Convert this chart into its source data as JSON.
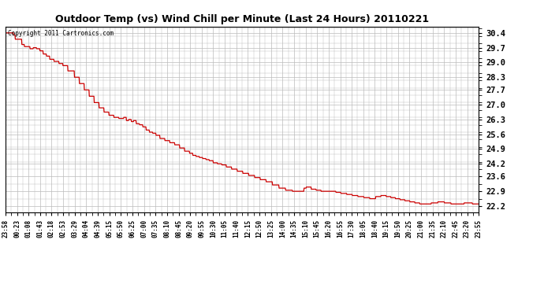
{
  "title": "Outdoor Temp (vs) Wind Chill per Minute (Last 24 Hours) 20110221",
  "copyright_text": "Copyright 2011 Cartronics.com",
  "line_color": "#cc0000",
  "background_color": "#ffffff",
  "plot_bg_color": "#ffffff",
  "grid_color": "#bbbbbb",
  "yticks": [
    22.2,
    22.9,
    23.6,
    24.2,
    24.9,
    25.6,
    26.3,
    27.0,
    27.7,
    28.3,
    29.0,
    29.7,
    30.4
  ],
  "ylim": [
    21.9,
    30.7
  ],
  "xtick_labels": [
    "23:58",
    "00:23",
    "01:08",
    "01:43",
    "02:18",
    "02:53",
    "03:29",
    "04:04",
    "04:39",
    "05:15",
    "05:50",
    "06:25",
    "07:00",
    "07:35",
    "08:10",
    "08:45",
    "09:20",
    "09:55",
    "10:30",
    "11:05",
    "11:40",
    "12:15",
    "12:50",
    "13:25",
    "14:00",
    "14:35",
    "15:10",
    "15:45",
    "16:20",
    "16:55",
    "17:30",
    "18:05",
    "18:40",
    "19:15",
    "19:50",
    "20:25",
    "21:00",
    "21:35",
    "22:10",
    "22:45",
    "23:20",
    "23:55"
  ],
  "num_points": 1440,
  "step_data": [
    [
      0,
      25,
      30.4
    ],
    [
      25,
      30,
      30.3
    ],
    [
      30,
      50,
      30.1
    ],
    [
      50,
      58,
      29.85
    ],
    [
      58,
      75,
      29.75
    ],
    [
      75,
      85,
      29.65
    ],
    [
      85,
      95,
      29.7
    ],
    [
      95,
      105,
      29.65
    ],
    [
      105,
      115,
      29.55
    ],
    [
      115,
      125,
      29.4
    ],
    [
      125,
      135,
      29.3
    ],
    [
      135,
      148,
      29.15
    ],
    [
      148,
      163,
      29.05
    ],
    [
      163,
      175,
      28.95
    ],
    [
      175,
      190,
      28.85
    ],
    [
      190,
      210,
      28.6
    ],
    [
      210,
      225,
      28.3
    ],
    [
      225,
      240,
      28.0
    ],
    [
      240,
      255,
      27.7
    ],
    [
      255,
      270,
      27.4
    ],
    [
      270,
      285,
      27.1
    ],
    [
      285,
      300,
      26.85
    ],
    [
      300,
      315,
      26.65
    ],
    [
      315,
      330,
      26.5
    ],
    [
      330,
      345,
      26.4
    ],
    [
      345,
      360,
      26.35
    ],
    [
      360,
      368,
      26.4
    ],
    [
      368,
      375,
      26.25
    ],
    [
      375,
      383,
      26.3
    ],
    [
      383,
      390,
      26.2
    ],
    [
      390,
      398,
      26.25
    ],
    [
      398,
      408,
      26.1
    ],
    [
      408,
      418,
      26.05
    ],
    [
      418,
      428,
      25.95
    ],
    [
      428,
      438,
      25.8
    ],
    [
      438,
      448,
      25.7
    ],
    [
      448,
      458,
      25.65
    ],
    [
      458,
      470,
      25.55
    ],
    [
      470,
      485,
      25.4
    ],
    [
      485,
      500,
      25.3
    ],
    [
      500,
      515,
      25.2
    ],
    [
      515,
      530,
      25.1
    ],
    [
      530,
      545,
      24.95
    ],
    [
      545,
      560,
      24.8
    ],
    [
      560,
      570,
      24.7
    ],
    [
      570,
      580,
      24.6
    ],
    [
      580,
      590,
      24.55
    ],
    [
      590,
      600,
      24.5
    ],
    [
      600,
      610,
      24.45
    ],
    [
      610,
      620,
      24.4
    ],
    [
      620,
      632,
      24.35
    ],
    [
      632,
      645,
      24.25
    ],
    [
      645,
      658,
      24.2
    ],
    [
      658,
      672,
      24.15
    ],
    [
      672,
      688,
      24.05
    ],
    [
      688,
      705,
      23.95
    ],
    [
      705,
      722,
      23.85
    ],
    [
      722,
      740,
      23.75
    ],
    [
      740,
      758,
      23.65
    ],
    [
      758,
      775,
      23.55
    ],
    [
      775,
      793,
      23.45
    ],
    [
      793,
      812,
      23.35
    ],
    [
      812,
      832,
      23.2
    ],
    [
      832,
      852,
      23.05
    ],
    [
      852,
      873,
      22.95
    ],
    [
      873,
      895,
      22.9
    ],
    [
      895,
      908,
      22.9
    ],
    [
      908,
      915,
      23.05
    ],
    [
      915,
      930,
      23.1
    ],
    [
      930,
      945,
      23.0
    ],
    [
      945,
      960,
      22.95
    ],
    [
      960,
      975,
      22.9
    ],
    [
      975,
      990,
      22.9
    ],
    [
      990,
      1005,
      22.9
    ],
    [
      1005,
      1020,
      22.85
    ],
    [
      1020,
      1038,
      22.8
    ],
    [
      1038,
      1055,
      22.75
    ],
    [
      1055,
      1072,
      22.7
    ],
    [
      1072,
      1090,
      22.65
    ],
    [
      1090,
      1108,
      22.6
    ],
    [
      1108,
      1126,
      22.55
    ],
    [
      1126,
      1142,
      22.65
    ],
    [
      1142,
      1158,
      22.7
    ],
    [
      1158,
      1172,
      22.65
    ],
    [
      1172,
      1186,
      22.6
    ],
    [
      1186,
      1200,
      22.55
    ],
    [
      1200,
      1215,
      22.5
    ],
    [
      1215,
      1230,
      22.45
    ],
    [
      1230,
      1245,
      22.4
    ],
    [
      1245,
      1260,
      22.35
    ],
    [
      1260,
      1275,
      22.3
    ],
    [
      1275,
      1295,
      22.3
    ],
    [
      1295,
      1315,
      22.35
    ],
    [
      1315,
      1335,
      22.4
    ],
    [
      1335,
      1355,
      22.35
    ],
    [
      1355,
      1375,
      22.3
    ],
    [
      1375,
      1395,
      22.3
    ],
    [
      1395,
      1420,
      22.35
    ],
    [
      1420,
      1440,
      22.3
    ]
  ]
}
